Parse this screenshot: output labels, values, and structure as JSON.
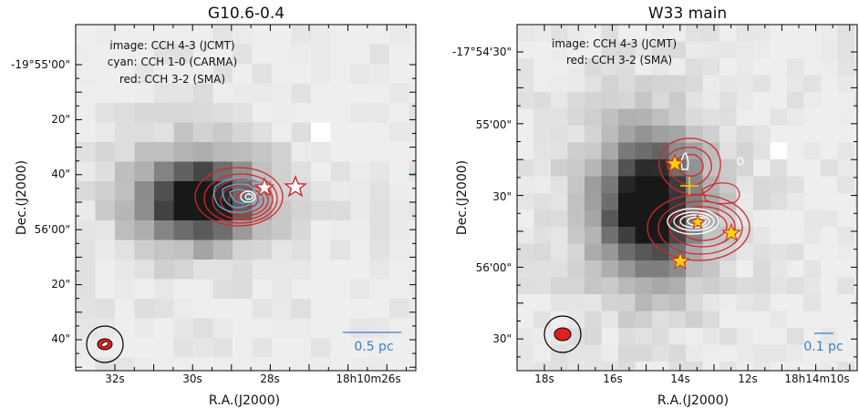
{
  "chart_data": [
    {
      "type": "heatmap",
      "title": "G10.6-0.4",
      "xlabel": "R.A.(J2000)",
      "ylabel": "Dec.(J2000)",
      "x_ticks": [
        "32s",
        "30s",
        "28s",
        "18h10m26s"
      ],
      "y_ticks": [
        "-19°55'00\"",
        "20\"",
        "40\"",
        "56'00\"",
        "20\"",
        "40\""
      ],
      "legend": [
        "image: CCH 4-3 (JCMT)",
        "cyan: CCH 1-0 (CARMA)",
        "red: CCH 3-2 (SMA)"
      ],
      "scalebar": "0.5 pc",
      "colors": {
        "image": "#555555",
        "cyan": "#5aaed0",
        "red": "#d0282c",
        "beam": "#e02020"
      }
    },
    {
      "type": "heatmap",
      "title": "W33 main",
      "xlabel": "R.A.(J2000)",
      "ylabel": "Dec.(J2000)",
      "x_ticks": [
        "18s",
        "16s",
        "14s",
        "12s",
        "18h14m10s"
      ],
      "y_ticks": [
        "-17°54'30\"",
        "55'00\"",
        "30\"",
        "56'00\"",
        "30\""
      ],
      "legend": [
        "image: CCH 4-3 (JCMT)",
        "red: CCH 3-2 (SMA)"
      ],
      "scalebar": "0.1 pc",
      "colors": {
        "image": "#555555",
        "red": "#d0282c",
        "star": "#ffd400",
        "beam": "#e02020"
      }
    }
  ]
}
